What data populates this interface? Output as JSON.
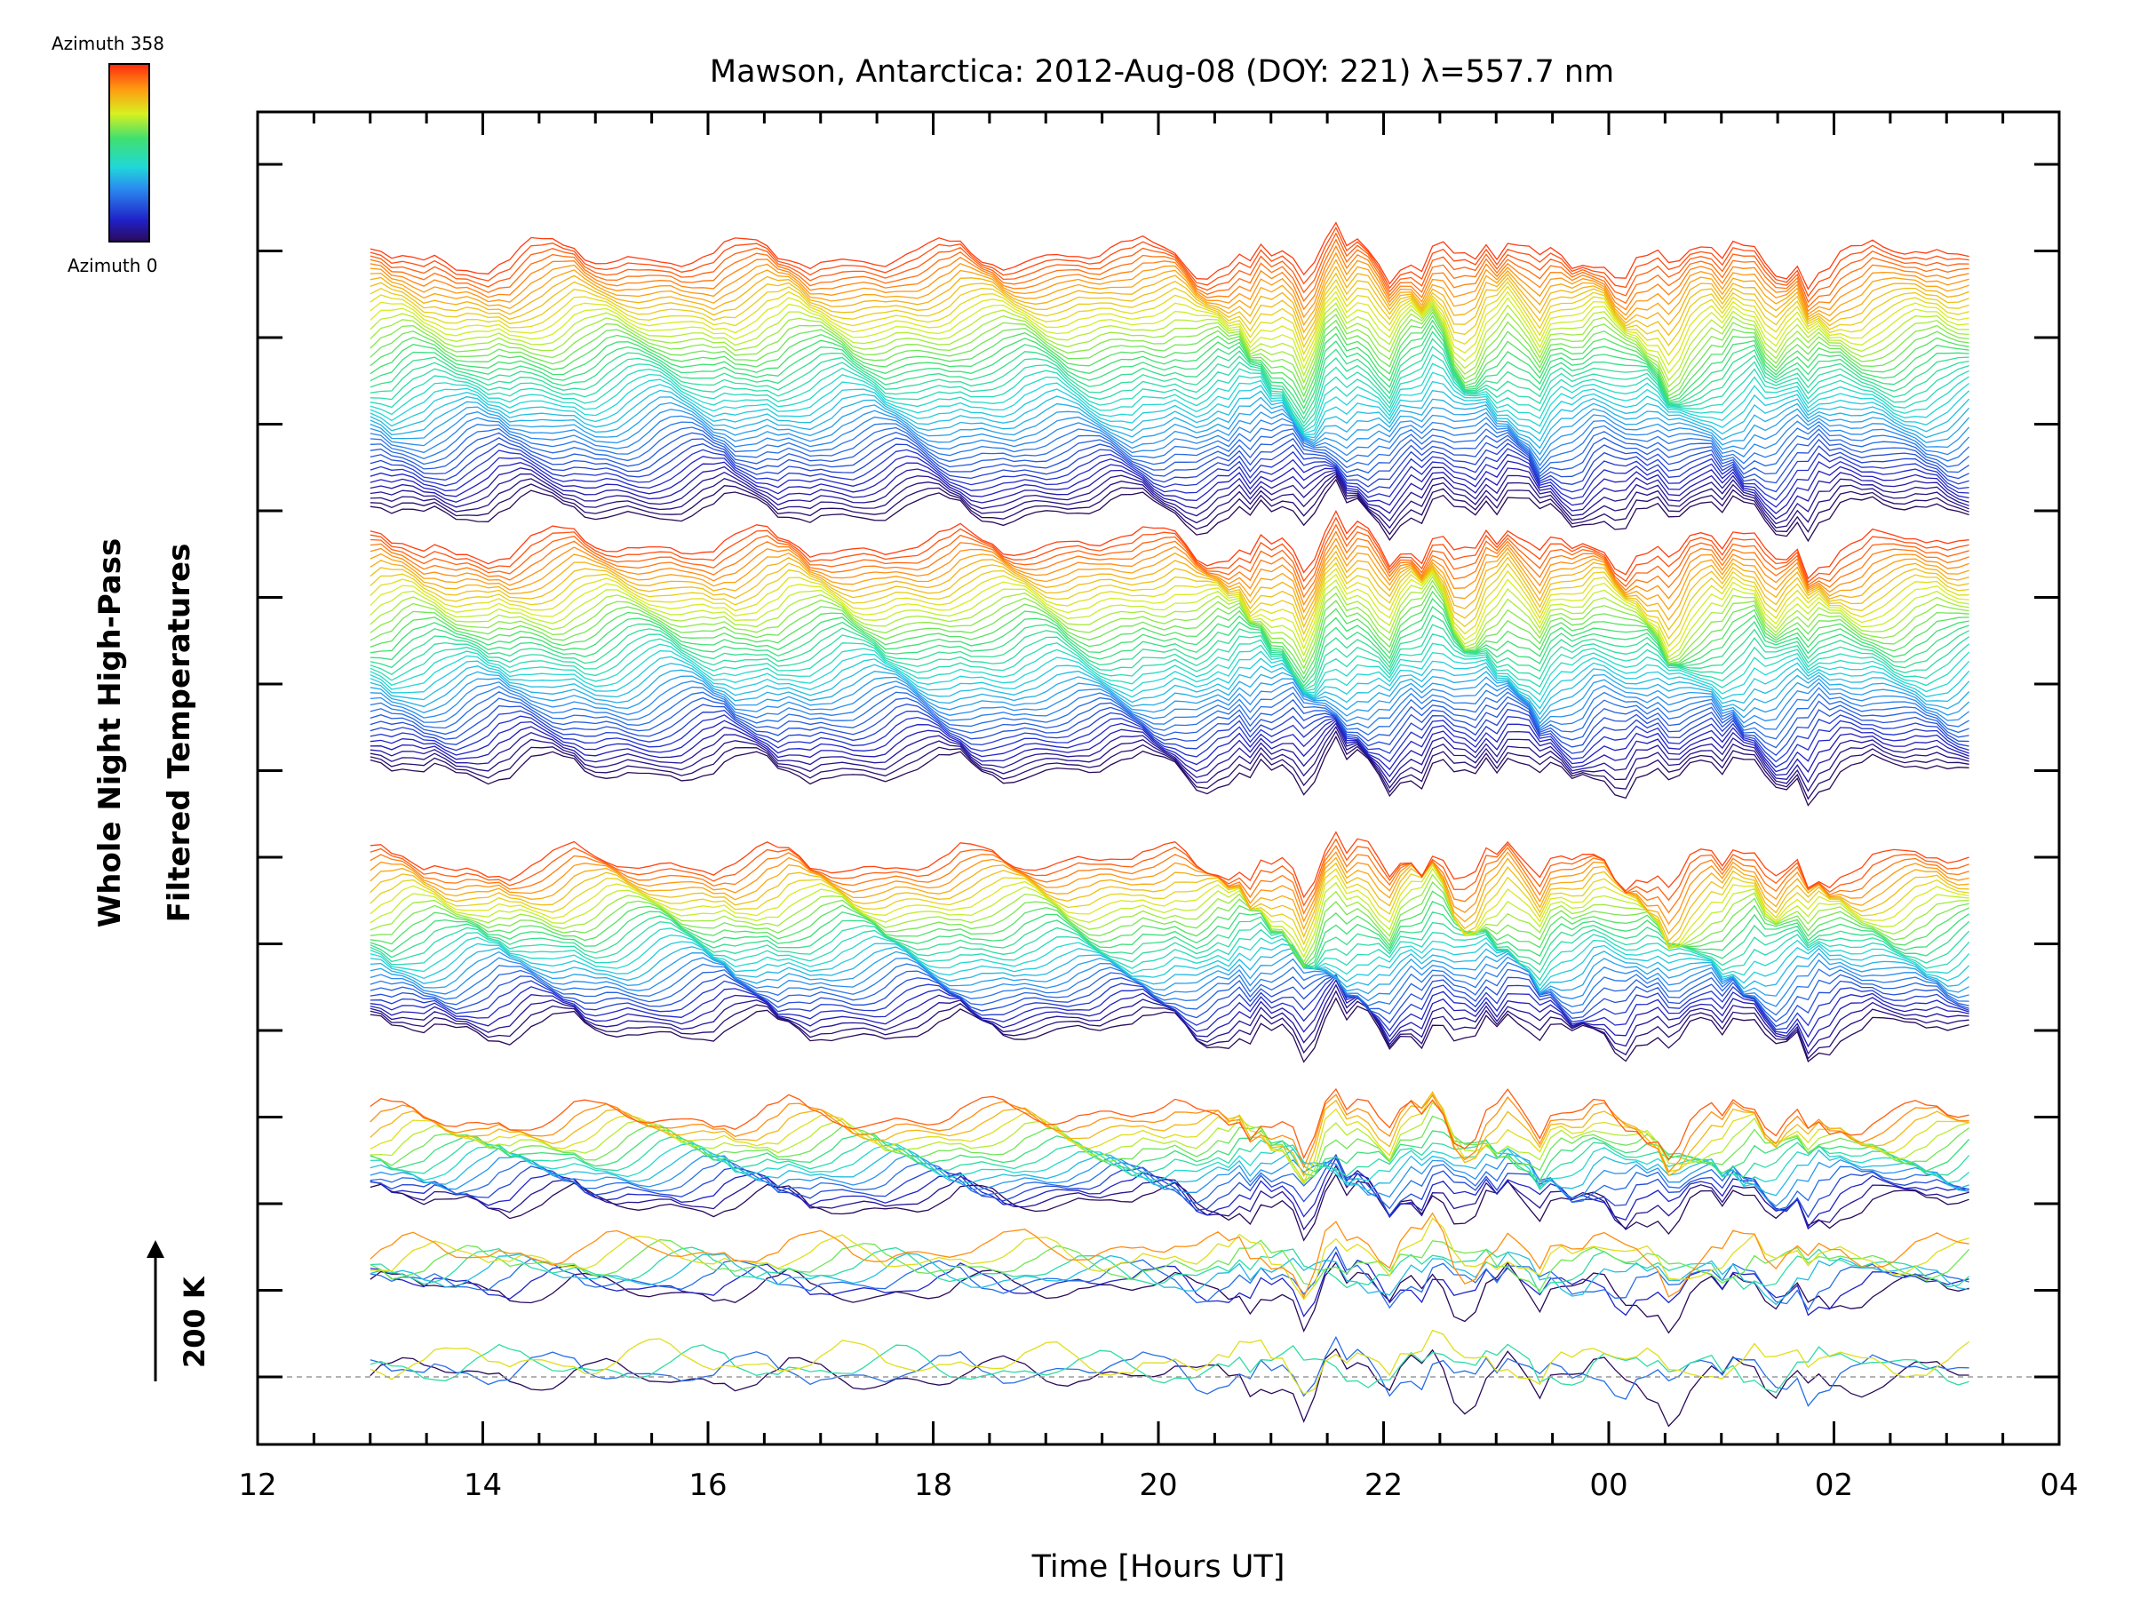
{
  "chart_data": {
    "type": "line",
    "title": "Mawson, Antarctica: 2012-Aug-08 (DOY: 221) λ=557.7 nm",
    "xlabel": "Time [Hours UT]",
    "ylabel_line1": "Whole Night High-Pass",
    "ylabel_line2": "Filtered Temperatures",
    "scale_bar_label": "200 K",
    "colorbar": {
      "top_label": "Azimuth 358",
      "bottom_label": "Azimuth 0",
      "min": 0,
      "max": 358
    },
    "x_range_hours": [
      12,
      28
    ],
    "x_tick_labels": [
      "12",
      "14",
      "16",
      "18",
      "20",
      "22",
      "00",
      "02",
      "04"
    ],
    "x_tick_hours": [
      12,
      14,
      16,
      18,
      20,
      22,
      24,
      26,
      28
    ],
    "data_start_hour": 13.0,
    "data_end_hour": 27.2,
    "y_major_tick_count": 15,
    "rings": [
      {
        "ring": 1,
        "traces": 4,
        "base_level": 0
      },
      {
        "ring": 2,
        "traces": 8,
        "base_level": 1
      },
      {
        "ring": 3,
        "traces": 16,
        "base_level": 2
      },
      {
        "ring": 4,
        "traces": 30,
        "base_level": 4
      },
      {
        "ring": 5,
        "traces": 40,
        "base_level": 7
      },
      {
        "ring": 6,
        "traces": 45,
        "base_level": 10
      }
    ],
    "trace_offset_K": 5,
    "scale_bar_K": 200
  },
  "colors": {
    "axis": "#000000",
    "baseline": "#9a9a9a",
    "background": "#ffffff"
  }
}
